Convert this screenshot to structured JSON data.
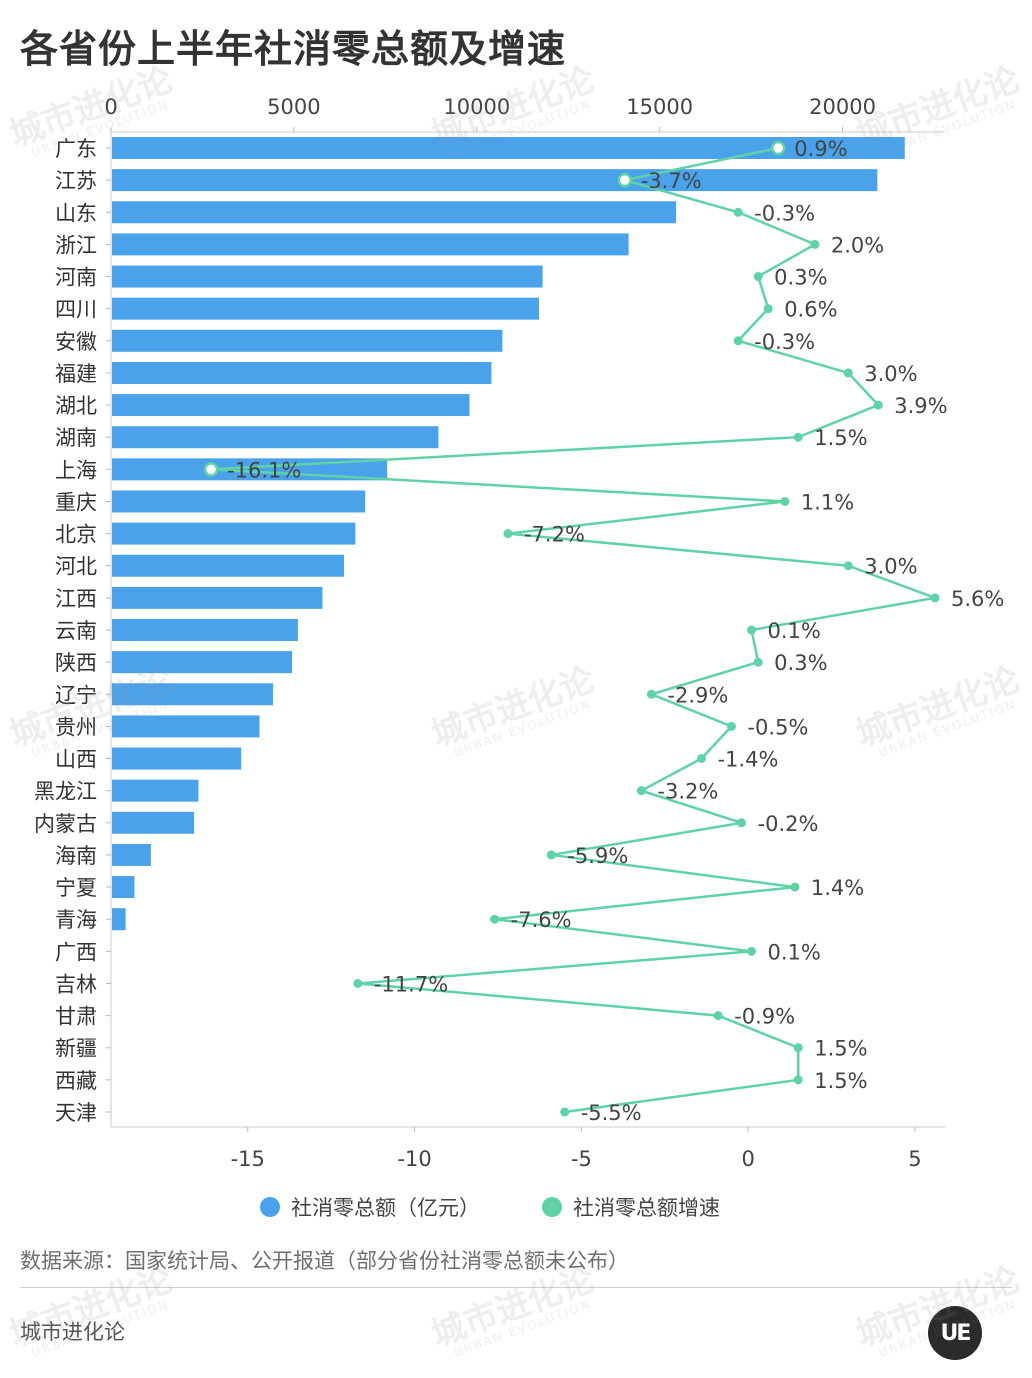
{
  "title": "各省份上半年社消零总额及增速",
  "source": "数据来源：国家统计局、公开报道（部分省份社消零总额未公布）",
  "brand": "城市进化论",
  "logo_text": "UE",
  "watermark": {
    "cn": "城市进化论",
    "en": "URBAN EVOLUTION"
  },
  "chart_data": {
    "type": "bar",
    "orientation": "horizontal",
    "categories": [
      "广东",
      "江苏",
      "山东",
      "浙江",
      "河南",
      "四川",
      "安徽",
      "福建",
      "湖北",
      "湖南",
      "上海",
      "重庆",
      "北京",
      "河北",
      "江西",
      "云南",
      "陕西",
      "辽宁",
      "贵州",
      "山西",
      "黑龙江",
      "内蒙古",
      "海南",
      "宁夏",
      "青海",
      "广西",
      "吉林",
      "甘肃",
      "新疆",
      "西藏",
      "天津"
    ],
    "top_axis": {
      "ticks": [
        0,
        5000,
        10000,
        15000,
        20000
      ],
      "range": [
        0,
        22800
      ]
    },
    "bottom_axis": {
      "ticks": [
        -15,
        -10,
        -5,
        0,
        5
      ],
      "range": [
        -19.1,
        5.9
      ]
    },
    "series": [
      {
        "name": "社消零总额（亿元）",
        "kind": "bar",
        "axis": "top",
        "color": "#4aa3ea",
        "values": [
          21700,
          20950,
          15450,
          14150,
          11800,
          11700,
          10700,
          10400,
          9800,
          8950,
          7550,
          6950,
          6680,
          6370,
          5780,
          5110,
          4950,
          4430,
          4060,
          3560,
          2390,
          2270,
          1090,
          640,
          400,
          null,
          null,
          null,
          null,
          null,
          null
        ]
      },
      {
        "name": "社消零总额增速",
        "kind": "line",
        "axis": "bottom",
        "color": "#5fd3a6",
        "values": [
          0.9,
          -3.7,
          -0.3,
          2.0,
          0.3,
          0.6,
          -0.3,
          3.0,
          3.9,
          1.5,
          -16.1,
          1.1,
          -7.2,
          3.0,
          5.6,
          0.1,
          0.3,
          -2.9,
          -0.5,
          -1.4,
          -3.2,
          -0.2,
          -5.9,
          1.4,
          -7.6,
          0.1,
          -11.7,
          -0.9,
          1.5,
          1.5,
          -5.5
        ],
        "labels": [
          "0.9%",
          "-3.7%",
          "-0.3%",
          "2.0%",
          "0.3%",
          "0.6%",
          "-0.3%",
          "3.0%",
          "3.9%",
          "1.5%",
          "-16.1%",
          "1.1%",
          "-7.2%",
          "3.0%",
          "5.6%",
          "0.1%",
          "0.3%",
          "-2.9%",
          "-0.5%",
          "-1.4%",
          "-3.2%",
          "-0.2%",
          "-5.9%",
          "1.4%",
          "-7.6%",
          "0.1%",
          "-11.7%",
          "-0.9%",
          "1.5%",
          "1.5%",
          "-5.5%"
        ],
        "highlighted": [
          "广东",
          "江苏",
          "上海"
        ]
      }
    ],
    "legend_position": "bottom",
    "grid": false
  }
}
